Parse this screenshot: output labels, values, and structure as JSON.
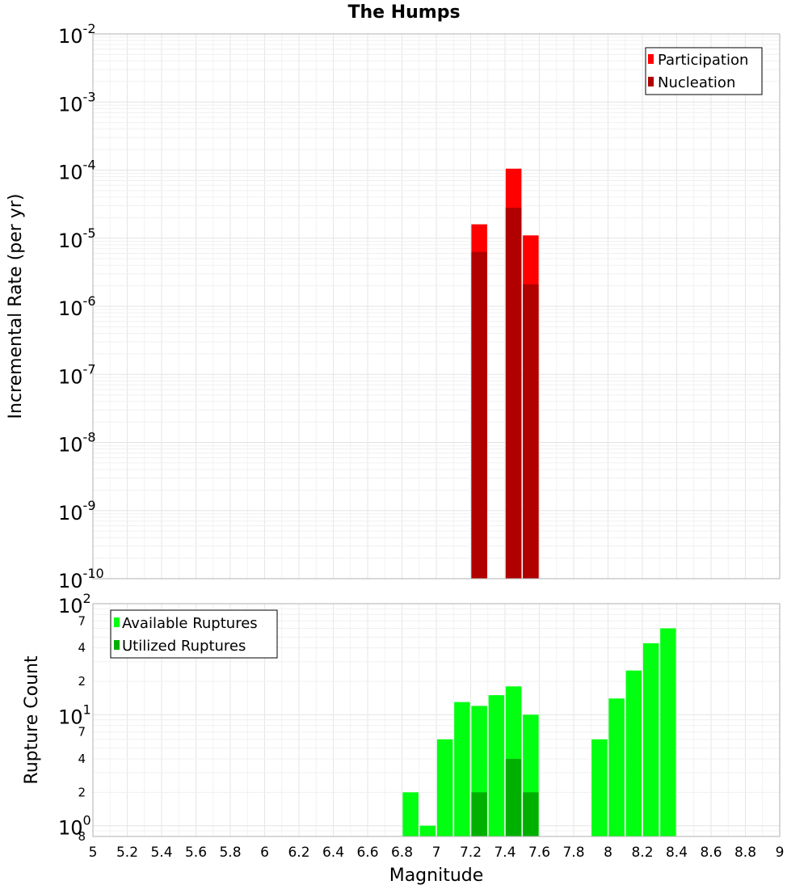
{
  "title": "The Humps",
  "chart_data": [
    {
      "type": "bar",
      "name": "rate-panel",
      "ylabel": "Incremental Rate (per yr)",
      "yscale": "log",
      "ylim": [
        1e-10,
        0.01
      ],
      "y_ticks": [
        {
          "base": "10",
          "exp": "-2",
          "v": 0.01
        },
        {
          "base": "10",
          "exp": "-3",
          "v": 0.001
        },
        {
          "base": "10",
          "exp": "-4",
          "v": 0.0001
        },
        {
          "base": "10",
          "exp": "-5",
          "v": 1e-05
        },
        {
          "base": "10",
          "exp": "-6",
          "v": 1e-06
        },
        {
          "base": "10",
          "exp": "-7",
          "v": 1e-07
        },
        {
          "base": "10",
          "exp": "-8",
          "v": 1e-08
        },
        {
          "base": "10",
          "exp": "-9",
          "v": 1e-09
        },
        {
          "base": "10",
          "exp": "-10",
          "v": 1e-10
        }
      ],
      "legend_position": "top-right",
      "series": [
        {
          "name": "Participation",
          "color": "#ff0000",
          "x": [
            7.25,
            7.45,
            7.55
          ],
          "values": [
            1.6e-05,
            0.000105,
            1.1e-05
          ]
        },
        {
          "name": "Nucleation",
          "color": "#b00000",
          "x": [
            7.25,
            7.45,
            7.55
          ],
          "values": [
            6.3e-06,
            2.8e-05,
            2.1e-06
          ]
        }
      ]
    },
    {
      "type": "bar",
      "name": "count-panel",
      "ylabel": "Rupture Count",
      "xlabel": "Magnitude",
      "yscale": "log",
      "ylim": [
        0.8,
        100
      ],
      "y_major_ticks": [
        {
          "base": "10",
          "exp": "2",
          "v": 100
        },
        {
          "base": "10",
          "exp": "1",
          "v": 10
        },
        {
          "base": "10",
          "exp": "0",
          "v": 1
        }
      ],
      "y_minor_ticks": [
        {
          "label": "7",
          "v": 70
        },
        {
          "label": "4",
          "v": 40
        },
        {
          "label": "2",
          "v": 20
        },
        {
          "label": "7",
          "v": 7
        },
        {
          "label": "4",
          "v": 4
        },
        {
          "label": "2",
          "v": 2
        },
        {
          "label": "8",
          "v": 0.8
        }
      ],
      "legend_position": "top-left",
      "series": [
        {
          "name": "Available Ruptures",
          "color": "#00ff10",
          "x": [
            6.85,
            6.95,
            7.05,
            7.15,
            7.25,
            7.35,
            7.45,
            7.55,
            7.95,
            8.05,
            8.15,
            8.25,
            8.35
          ],
          "values": [
            2,
            1,
            6,
            13,
            12,
            15,
            18,
            10,
            6,
            14,
            25,
            44,
            60
          ]
        },
        {
          "name": "Utilized Ruptures",
          "color": "#00b000",
          "x": [
            7.25,
            7.45,
            7.55
          ],
          "values": [
            2,
            4,
            2
          ]
        }
      ]
    }
  ],
  "x_axis": {
    "label": "Magnitude",
    "range": [
      5,
      9
    ],
    "tick_labels": [
      "5",
      "5.2",
      "5.4",
      "5.6",
      "5.8",
      "6",
      "6.2",
      "6.4",
      "6.6",
      "6.8",
      "7",
      "7.2",
      "7.4",
      "7.6",
      "7.8",
      "8",
      "8.2",
      "8.4",
      "8.6",
      "8.8",
      "9"
    ]
  }
}
